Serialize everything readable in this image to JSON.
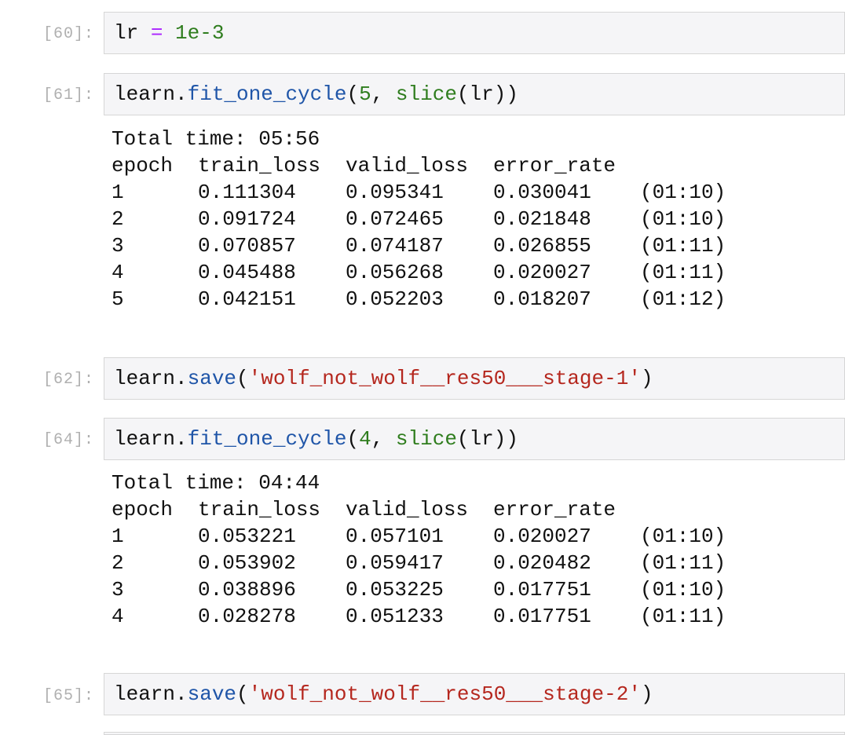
{
  "cells": [
    {
      "prompt": "[60]:",
      "code": {
        "var": "lr",
        "op": "=",
        "value": "1e-3"
      }
    },
    {
      "prompt": "[61]:",
      "code": {
        "obj": "learn.",
        "fn": "fit_one_cycle",
        "open": "(",
        "arg": "5",
        "sep": ", ",
        "builtin": "slice",
        "rest": "(lr))"
      },
      "output": {
        "total_time": "Total time: 05:56",
        "headers": [
          "epoch",
          "train_loss",
          "valid_loss",
          "error_rate"
        ],
        "rows": [
          [
            "1",
            "0.111304",
            "0.095341",
            "0.030041",
            "(01:10)"
          ],
          [
            "2",
            "0.091724",
            "0.072465",
            "0.021848",
            "(01:10)"
          ],
          [
            "3",
            "0.070857",
            "0.074187",
            "0.026855",
            "(01:11)"
          ],
          [
            "4",
            "0.045488",
            "0.056268",
            "0.020027",
            "(01:11)"
          ],
          [
            "5",
            "0.042151",
            "0.052203",
            "0.018207",
            "(01:12)"
          ]
        ]
      }
    },
    {
      "prompt": "[62]:",
      "code": {
        "obj": "learn.",
        "fn": "save",
        "open": "(",
        "str": "'wolf_not_wolf__res50___stage-1'",
        "close": ")"
      }
    },
    {
      "prompt": "[64]:",
      "code": {
        "obj": "learn.",
        "fn": "fit_one_cycle",
        "open": "(",
        "arg": "4",
        "sep": ", ",
        "builtin": "slice",
        "rest": "(lr))"
      },
      "output": {
        "total_time": "Total time: 04:44",
        "headers": [
          "epoch",
          "train_loss",
          "valid_loss",
          "error_rate"
        ],
        "rows": [
          [
            "1",
            "0.053221",
            "0.057101",
            "0.020027",
            "(01:10)"
          ],
          [
            "2",
            "0.053902",
            "0.059417",
            "0.020482",
            "(01:11)"
          ],
          [
            "3",
            "0.038896",
            "0.053225",
            "0.017751",
            "(01:10)"
          ],
          [
            "4",
            "0.028278",
            "0.051233",
            "0.017751",
            "(01:11)"
          ]
        ]
      }
    },
    {
      "prompt": "[65]:",
      "code": {
        "obj": "learn.",
        "fn": "save",
        "open": "(",
        "str": "'wolf_not_wolf__res50___stage-2'",
        "close": ")"
      }
    }
  ]
}
